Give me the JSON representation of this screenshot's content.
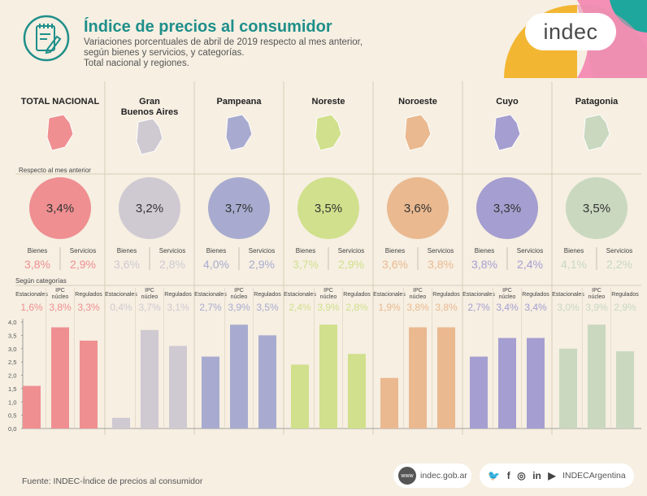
{
  "header": {
    "title": "Índice de precios al consumidor",
    "subtitle_lines": [
      "Variaciones porcentuales de abril de 2019 respecto al mes anterior,",
      "según bienes y servicios, y categorías.",
      "Total nacional y regiones."
    ],
    "logo_text": "indec"
  },
  "section_labels": {
    "monthly": "Respecto al mes anterior",
    "categories": "Según categorías"
  },
  "colors": {
    "TOTAL NACIONAL": "#ef8f91",
    "Gran Buenos Aires": "#cfc9d2",
    "Pampeana": "#a8abcf",
    "Noreste": "#d1e08c",
    "Noroeste": "#eab990",
    "Cuyo": "#a59ed0",
    "Patagonia": "#c9d8bf",
    "teal": "#1f8f8a",
    "background": "#f6efe2"
  },
  "chart_data": {
    "type": "bar",
    "regions": [
      {
        "name": "TOTAL NACIONAL",
        "total": "3,4%",
        "bienes": "3,8%",
        "servicios": "2,9%",
        "categories": [
          1.6,
          3.8,
          3.3
        ],
        "category_labels": [
          "1,6%",
          "3,8%",
          "3,3%"
        ]
      },
      {
        "name": "Gran\nBuenos Aires",
        "total": "3,2%",
        "bienes": "3,6%",
        "servicios": "2,8%",
        "categories": [
          0.4,
          3.7,
          3.1
        ],
        "category_labels": [
          "0,4%",
          "3,7%",
          "3,1%"
        ]
      },
      {
        "name": "Pampeana",
        "total": "3,7%",
        "bienes": "4,0%",
        "servicios": "2,9%",
        "categories": [
          2.7,
          3.9,
          3.5
        ],
        "category_labels": [
          "2,7%",
          "3,9%",
          "3,5%"
        ]
      },
      {
        "name": "Noreste",
        "total": "3,5%",
        "bienes": "3,7%",
        "servicios": "2,9%",
        "categories": [
          2.4,
          3.9,
          2.8
        ],
        "category_labels": [
          "2,4%",
          "3,9%",
          "2,8%"
        ]
      },
      {
        "name": "Noroeste",
        "total": "3,6%",
        "bienes": "3,6%",
        "servicios": "3,8%",
        "categories": [
          1.9,
          3.8,
          3.8
        ],
        "category_labels": [
          "1,9%",
          "3,8%",
          "3,8%"
        ]
      },
      {
        "name": "Cuyo",
        "total": "3,3%",
        "bienes": "3,8%",
        "servicios": "2,4%",
        "categories": [
          2.7,
          3.4,
          3.4
        ],
        "category_labels": [
          "2,7%",
          "3,4%",
          "3,4%"
        ]
      },
      {
        "name": "Patagonia",
        "total": "3,5%",
        "bienes": "4,1%",
        "servicios": "2,2%",
        "categories": [
          3.0,
          3.9,
          2.9
        ],
        "category_labels": [
          "3,0%",
          "3,9%",
          "2,9%"
        ]
      }
    ],
    "sub_labels": {
      "bienes": "Bienes",
      "servicios": "Servicios"
    },
    "category_names": [
      "Estacionales",
      "IPC\nnúcleo",
      "Regulados"
    ],
    "y_ticks": [
      "0,0",
      "0,5",
      "1,0",
      "1,5",
      "2,0",
      "2,5",
      "3,0",
      "3,5",
      "4,0"
    ],
    "ylim": [
      0,
      4.0
    ],
    "grid": false
  },
  "footer": {
    "source": "Fuente: INDEC-Índice de precios al consumidor",
    "website": "indec.gob.ar",
    "web_icon": "www",
    "social_handle": "INDECArgentina",
    "social_icons": [
      "twitter-icon",
      "facebook-icon",
      "instagram-icon",
      "linkedin-icon",
      "youtube-icon"
    ]
  }
}
